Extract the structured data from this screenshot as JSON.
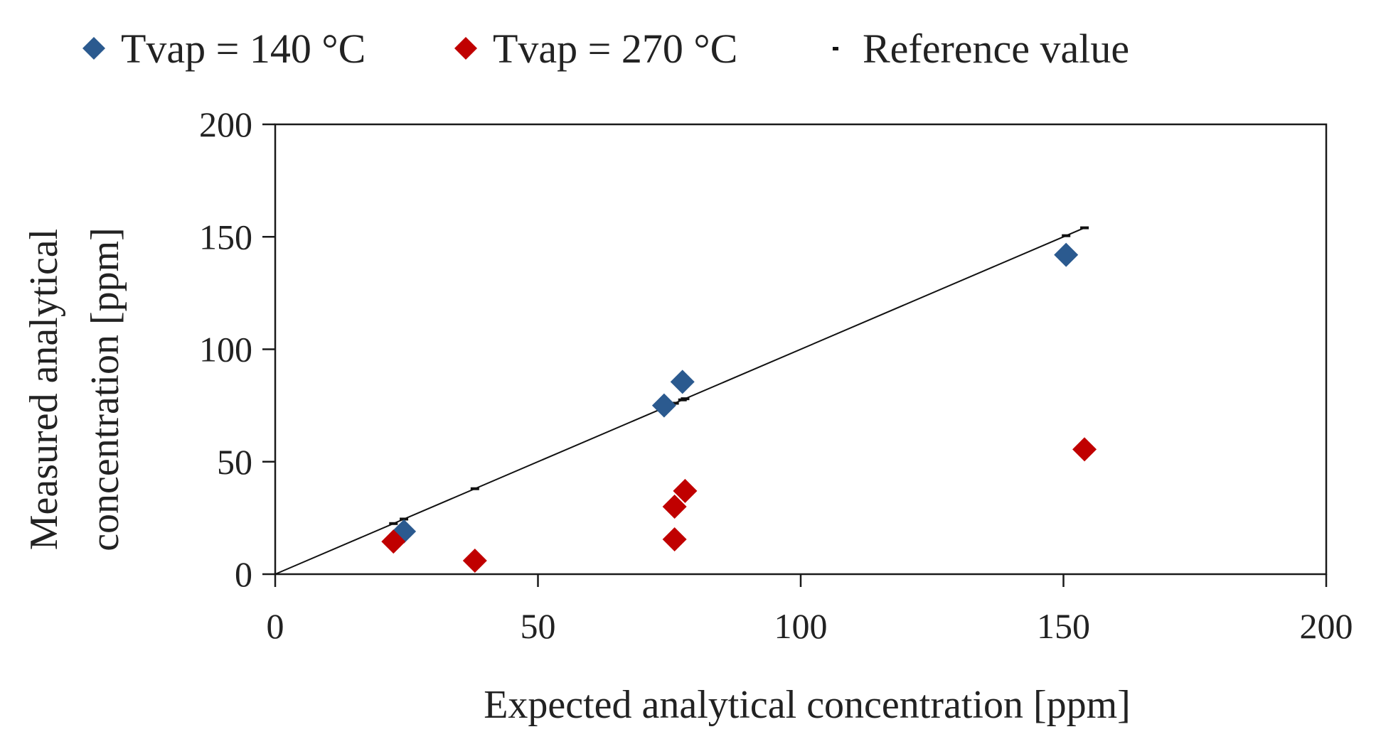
{
  "chart_data": {
    "type": "scatter",
    "xlabel": "Expected analytical concentration [ppm]",
    "ylabel_line1": "Measured analytical",
    "ylabel_line2": "concentration [ppm]",
    "xlim": [
      0,
      200
    ],
    "ylim": [
      0,
      200
    ],
    "x_ticks": [
      0,
      50,
      100,
      150,
      200
    ],
    "y_ticks": [
      0,
      50,
      100,
      150,
      200
    ],
    "x_tick_labels": [
      "0",
      "50",
      "100",
      "150",
      "200"
    ],
    "y_tick_labels": [
      "0",
      "50",
      "100",
      "150",
      "200"
    ],
    "grid": false,
    "legend_position": "top",
    "series": [
      {
        "name": "Tvap = 140 °C",
        "color": "#2b5a8f",
        "marker": "diamond",
        "points": [
          [
            24.5,
            19
          ],
          [
            74,
            75
          ],
          [
            77.5,
            85.5
          ],
          [
            150.5,
            142
          ]
        ]
      },
      {
        "name": "Tvap = 270 °C",
        "color": "#c00000",
        "marker": "diamond",
        "points": [
          [
            22.5,
            14.5
          ],
          [
            38,
            6
          ],
          [
            76,
            30
          ],
          [
            78,
            37
          ],
          [
            76,
            15.5
          ],
          [
            154,
            55.5
          ]
        ]
      },
      {
        "name": "Reference value",
        "color": "#111111",
        "marker": "dash",
        "points": [
          [
            22.5,
            22.5
          ],
          [
            24.5,
            24.5
          ],
          [
            38,
            38
          ],
          [
            74,
            74
          ],
          [
            76,
            76
          ],
          [
            77.5,
            77.5
          ],
          [
            78,
            78
          ],
          [
            150.5,
            150.5
          ],
          [
            154,
            154
          ]
        ]
      }
    ],
    "reference_line": {
      "from": [
        0,
        0
      ],
      "to": [
        154,
        154
      ],
      "color": "#111111"
    }
  }
}
